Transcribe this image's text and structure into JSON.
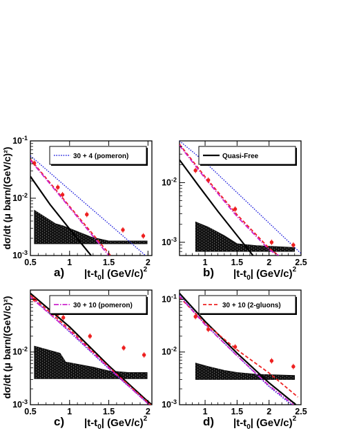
{
  "chart_data": [
    {
      "panel": "a",
      "type": "line",
      "panel_label": "a)",
      "xlabel": {
        "base": "|t-t",
        "sub": "0",
        "mid": "| (GeV/c)",
        "sup": "2"
      },
      "ylabel": "dσ/dt (μ barn/(GeV/c)²)",
      "log_y": true,
      "xlim": [
        0.5,
        2.05
      ],
      "ylim": [
        0.001,
        0.1
      ],
      "x_ticks": [
        0.5,
        1,
        1.5,
        2
      ],
      "x_tick_labels": [
        "0.5",
        "1",
        "1.5",
        "2"
      ],
      "y_ticks": [
        0.001,
        0.01,
        0.1
      ],
      "y_tick_labels": [
        "10-3",
        "10-2",
        "10-1"
      ],
      "legend": {
        "label": "30 + 4 (pomeron)",
        "style": "dotted",
        "color": "#2222dd",
        "position": "top-right"
      },
      "data_points": {
        "color": "#ee2020",
        "x": [
          0.55,
          0.85,
          0.91,
          1.22,
          1.68,
          1.94
        ],
        "y": [
          0.041,
          0.0155,
          0.0115,
          0.0052,
          0.0028,
          0.0022
        ]
      },
      "band": {
        "x": [
          0.55,
          0.82,
          0.92,
          1.05,
          1.28,
          1.5,
          1.75,
          1.99
        ],
        "upper": [
          0.0062,
          0.0036,
          0.0033,
          0.0028,
          0.0021,
          0.0018,
          0.0018,
          0.0018
        ],
        "lower": [
          0.0016,
          0.0016,
          0.0016,
          0.0016,
          0.0016,
          0.0016,
          0.0016,
          0.0016
        ]
      },
      "series": [
        {
          "style": "solid",
          "color": "#000000",
          "x": [
            0.5,
            0.75,
            1.0,
            1.25,
            1.45
          ],
          "y": [
            0.024,
            0.0078,
            0.0029,
            0.0011,
            0.0005
          ]
        },
        {
          "style": "dotted",
          "color": "#2222dd",
          "x": [
            0.5,
            1.0,
            1.5,
            2.05
          ],
          "y": [
            0.055,
            0.014,
            0.0036,
            0.0008
          ]
        },
        {
          "style": "dashed",
          "color": "#ee2222",
          "x": [
            0.5,
            1.0,
            1.5,
            1.7
          ],
          "y": [
            0.048,
            0.0072,
            0.0011,
            0.0005
          ]
        },
        {
          "style": "dashdot",
          "color": "#cc22cc",
          "x": [
            0.5,
            1.0,
            1.5,
            1.7
          ],
          "y": [
            0.046,
            0.0069,
            0.001,
            0.0005
          ]
        }
      ]
    },
    {
      "panel": "b",
      "type": "line",
      "panel_label": "b)",
      "xlabel": {
        "base": "|t-t",
        "sub": "0",
        "mid": "| (GeV/c)",
        "sup": "2"
      },
      "log_y": true,
      "xlim": [
        0.6,
        2.5
      ],
      "ylim": [
        0.0006,
        0.05
      ],
      "x_ticks": [
        1,
        1.5,
        2,
        2.5
      ],
      "x_tick_labels": [
        "1",
        "1.5",
        "2",
        "2.5"
      ],
      "y_ticks": [
        0.001,
        0.01
      ],
      "y_tick_labels": [
        "10-3",
        "10-2"
      ],
      "legend": {
        "label": "Quasi-Free",
        "style": "solid",
        "color": "#000000",
        "position": "top-right"
      },
      "data_points": {
        "color": "#ee2020",
        "x": [
          0.85,
          1.05,
          1.47,
          2.04,
          2.38
        ],
        "y": [
          0.016,
          0.011,
          0.0036,
          0.001,
          0.0009
        ]
      },
      "band": {
        "x": [
          0.85,
          1.05,
          1.3,
          1.5,
          1.8,
          2.1,
          2.4
        ],
        "upper": [
          0.0022,
          0.0018,
          0.0013,
          0.00095,
          0.00088,
          0.00085,
          0.00082
        ],
        "lower": [
          0.0007,
          0.0007,
          0.0007,
          0.0007,
          0.0007,
          0.0007,
          0.0007
        ]
      },
      "series": [
        {
          "style": "solid",
          "color": "#000000",
          "x": [
            0.6,
            0.9,
            1.2,
            1.5,
            1.75
          ],
          "y": [
            0.024,
            0.0088,
            0.0033,
            0.0013,
            0.0006
          ]
        },
        {
          "style": "dotted",
          "color": "#2222dd",
          "x": [
            0.6,
            1.0,
            1.5,
            2.0,
            2.5
          ],
          "y": [
            0.05,
            0.022,
            0.0068,
            0.0021,
            0.00065
          ]
        },
        {
          "style": "dashed",
          "color": "#ee2222",
          "x": [
            0.6,
            1.0,
            1.5,
            2.0,
            2.15
          ],
          "y": [
            0.044,
            0.0125,
            0.0029,
            0.0008,
            0.0006
          ]
        },
        {
          "style": "dashdot",
          "color": "#cc22cc",
          "x": [
            0.6,
            1.0,
            1.5,
            2.0,
            2.15
          ],
          "y": [
            0.042,
            0.0118,
            0.0027,
            0.00075,
            0.0006
          ]
        }
      ]
    },
    {
      "panel": "c",
      "type": "line",
      "panel_label": "c)",
      "xlabel": {
        "base": "|t-t",
        "sub": "0",
        "mid": "| (GeV/c)",
        "sup": "2"
      },
      "ylabel": "dσ/dt (μ barn/(GeV/c)²)",
      "log_y": true,
      "xlim": [
        0.5,
        2.05
      ],
      "ylim": [
        0.001,
        0.15
      ],
      "x_ticks": [
        0.5,
        1,
        1.5,
        2
      ],
      "x_tick_labels": [
        "0.5",
        "1",
        "1.5",
        "2"
      ],
      "y_ticks": [
        0.001,
        0.01
      ],
      "y_tick_labels": [
        "10-3",
        "10-2"
      ],
      "legend": {
        "label": "30 + 10 (pomeron)",
        "style": "dashdot",
        "color": "#cc22cc",
        "position": "top-right"
      },
      "data_points": {
        "color": "#ee2020",
        "x": [
          0.55,
          0.85,
          0.92,
          1.26,
          1.69,
          1.95
        ],
        "y": [
          0.1,
          0.053,
          0.045,
          0.02,
          0.012,
          0.0088
        ]
      },
      "band": {
        "x": [
          0.55,
          0.88,
          0.95,
          1.3,
          1.5,
          1.75,
          1.99
        ],
        "upper": [
          0.013,
          0.0095,
          0.0065,
          0.0052,
          0.0044,
          0.0041,
          0.0041
        ],
        "lower": [
          0.0031,
          0.0031,
          0.0031,
          0.0031,
          0.0031,
          0.0031,
          0.0031
        ]
      },
      "series": [
        {
          "style": "solid",
          "color": "#000000",
          "x": [
            0.5,
            1.0,
            1.5,
            2.0,
            2.05
          ],
          "y": [
            0.13,
            0.03,
            0.0055,
            0.00115,
            0.001
          ]
        },
        {
          "style": "dotted",
          "color": "#2222dd",
          "x": [
            0.5,
            1.0,
            1.5,
            2.0,
            2.05
          ],
          "y": [
            0.115,
            0.024,
            0.0048,
            0.00105,
            0.0009
          ]
        },
        {
          "style": "dashed",
          "color": "#ee2222",
          "x": [
            0.5,
            1.0,
            1.5,
            2.0,
            2.05
          ],
          "y": [
            0.12,
            0.027,
            0.0052,
            0.0011,
            0.00095
          ]
        },
        {
          "style": "dashdot",
          "color": "#cc22cc",
          "x": [
            0.5,
            1.0,
            1.5,
            2.0,
            2.05
          ],
          "y": [
            0.11,
            0.025,
            0.005,
            0.00105,
            0.0009
          ]
        }
      ]
    },
    {
      "panel": "d",
      "type": "line",
      "panel_label": "d)",
      "xlabel": {
        "base": "|t-t",
        "sub": "0",
        "mid": "| (GeV/c)",
        "sup": "2"
      },
      "log_y": true,
      "xlim": [
        0.6,
        2.5
      ],
      "ylim": [
        0.001,
        0.15
      ],
      "x_ticks": [
        1,
        1.5,
        2,
        2.5
      ],
      "x_tick_labels": [
        "1",
        "1.5",
        "2",
        "2.5"
      ],
      "y_ticks": [
        0.001,
        0.01,
        0.1
      ],
      "y_tick_labels": [
        "10-3",
        "10-2",
        "10-1"
      ],
      "legend": {
        "label": "30 + 10 (2-gluons)",
        "style": "dashed",
        "color": "#ee2222",
        "position": "top-right"
      },
      "data_points": {
        "color": "#ee2020",
        "x": [
          0.85,
          1.05,
          1.47,
          2.04,
          2.38
        ],
        "y": [
          0.047,
          0.027,
          0.0125,
          0.0068,
          0.0053
        ]
      },
      "band": {
        "x": [
          0.85,
          1.05,
          1.3,
          1.5,
          1.8,
          2.1,
          2.4
        ],
        "upper": [
          0.0062,
          0.0053,
          0.0045,
          0.0041,
          0.0038,
          0.0037,
          0.0036
        ],
        "lower": [
          0.003,
          0.003,
          0.003,
          0.003,
          0.003,
          0.003,
          0.003
        ]
      },
      "series": [
        {
          "style": "solid",
          "color": "#000000",
          "x": [
            0.6,
            1.0,
            1.5,
            2.0,
            2.42
          ],
          "y": [
            0.13,
            0.038,
            0.0095,
            0.0026,
            0.001
          ]
        },
        {
          "style": "dotted",
          "color": "#2222dd",
          "x": [
            0.6,
            1.0,
            1.5,
            2.0,
            2.35
          ],
          "y": [
            0.12,
            0.034,
            0.0085,
            0.0022,
            0.001
          ]
        },
        {
          "style": "dashed",
          "color": "#ee2222",
          "x": [
            0.6,
            1.0,
            1.5,
            2.0,
            2.45
          ],
          "y": [
            0.11,
            0.035,
            0.011,
            0.004,
            0.0014
          ]
        },
        {
          "style": "dashdot",
          "color": "#cc22cc",
          "x": [
            0.6,
            1.0,
            1.5,
            2.0,
            2.38
          ],
          "y": [
            0.115,
            0.033,
            0.0085,
            0.0023,
            0.001
          ]
        }
      ]
    }
  ]
}
